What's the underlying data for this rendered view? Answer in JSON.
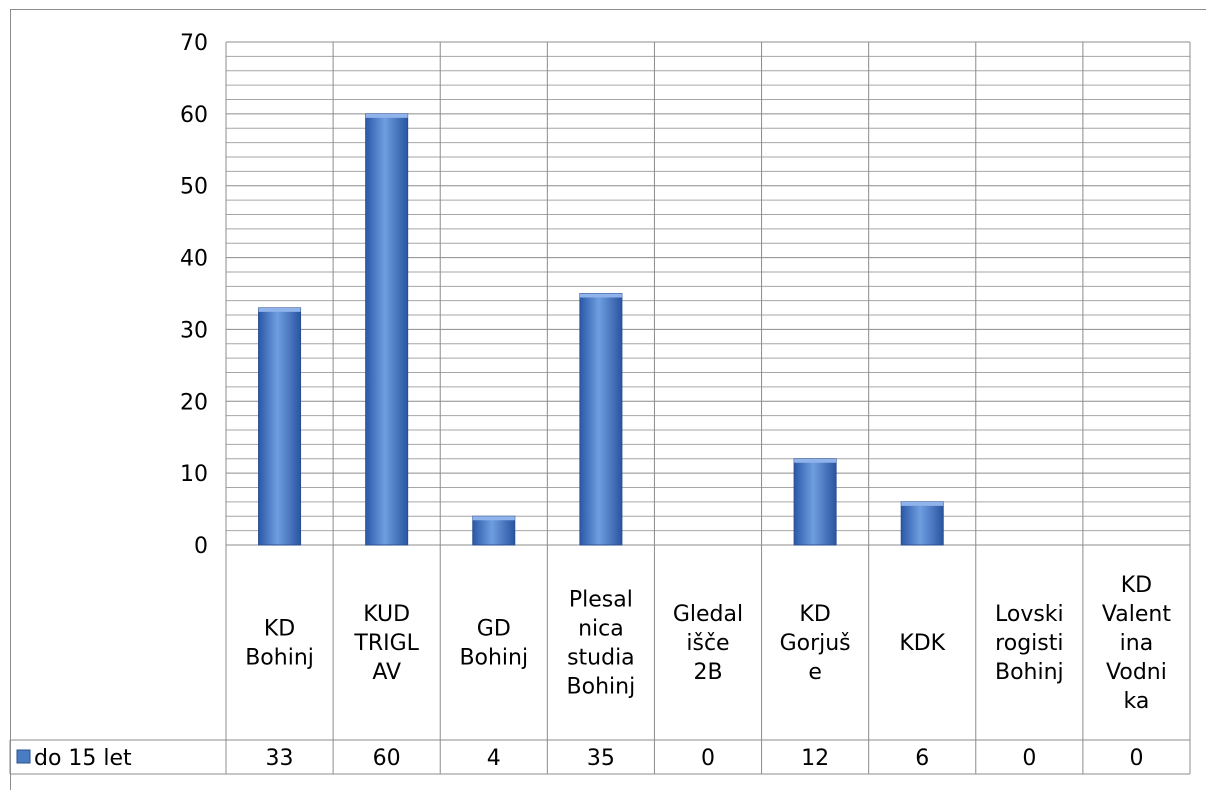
{
  "chart_data": {
    "type": "bar",
    "title": "",
    "xlabel": "",
    "ylabel": "",
    "ylim": [
      0,
      70
    ],
    "ytick_step": 10,
    "grid": true,
    "legend": "bottom-left (data table)",
    "categories": [
      [
        "KD",
        "Bohinj"
      ],
      [
        "KUD",
        "TRIGL",
        "AV"
      ],
      [
        "GD",
        "Bohinj"
      ],
      [
        "Plesal",
        "nica",
        "studia",
        "Bohinj"
      ],
      [
        "Gledal",
        "išče",
        "2B"
      ],
      [
        "KD",
        "Gorjuš",
        "e"
      ],
      [
        "KDK"
      ],
      [
        "Lovski",
        "rogisti",
        "Bohinj"
      ],
      [
        "KD",
        "Valent",
        "ina",
        "Vodni",
        "ka"
      ]
    ],
    "series": [
      {
        "name": "do 15 let",
        "color": "#4a7cc4",
        "values": [
          33,
          60,
          4,
          35,
          0,
          12,
          6,
          0,
          0
        ]
      }
    ]
  }
}
